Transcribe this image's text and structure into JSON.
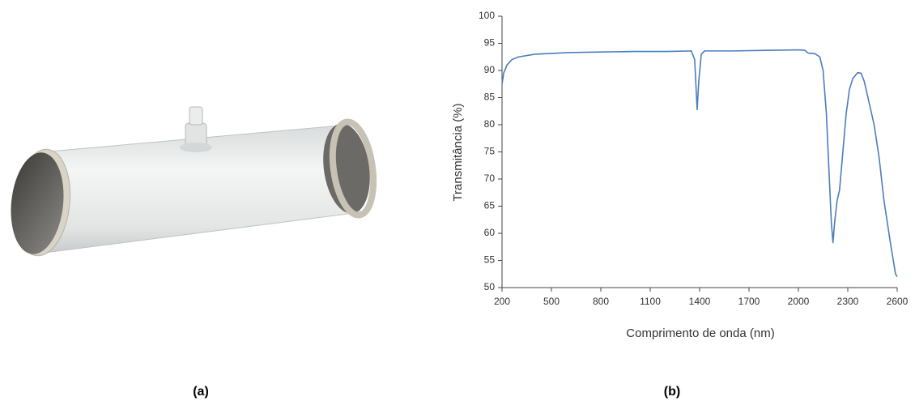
{
  "chart_data": {
    "type": "line",
    "xlabel": "Comprimento de onda (nm)",
    "ylabel": "Transmitância (%)",
    "x": [
      200,
      210,
      230,
      260,
      300,
      400,
      600,
      800,
      1000,
      1200,
      1350,
      1370,
      1385,
      1395,
      1410,
      1430,
      1600,
      1800,
      2000,
      2040,
      2060,
      2100,
      2130,
      2150,
      2170,
      2185,
      2200,
      2210,
      2220,
      2235,
      2250,
      2270,
      2290,
      2310,
      2330,
      2360,
      2380,
      2400,
      2430,
      2460,
      2490,
      2520,
      2560,
      2590,
      2600
    ],
    "values": [
      87.5,
      89.5,
      91,
      92,
      92.5,
      93,
      93.3,
      93.4,
      93.5,
      93.5,
      93.6,
      92,
      82.8,
      88,
      93,
      93.6,
      93.6,
      93.7,
      93.8,
      93.7,
      93.2,
      93.1,
      92.5,
      90,
      82,
      72,
      62,
      58.3,
      62,
      66,
      68,
      75,
      82,
      86.5,
      88.5,
      89.6,
      89.5,
      88,
      84,
      80,
      74,
      66,
      58,
      52.5,
      52
    ],
    "color": "#4a7ebb",
    "xlim": [
      200,
      2600
    ],
    "xticks": [
      200,
      500,
      800,
      1100,
      1400,
      1700,
      2000,
      2300,
      2600
    ],
    "ylim": [
      50,
      100
    ],
    "yticks": [
      50,
      55,
      60,
      65,
      70,
      75,
      80,
      85,
      90,
      95,
      100
    ],
    "grid": false
  },
  "captions": [
    "(a)",
    "(b)"
  ]
}
